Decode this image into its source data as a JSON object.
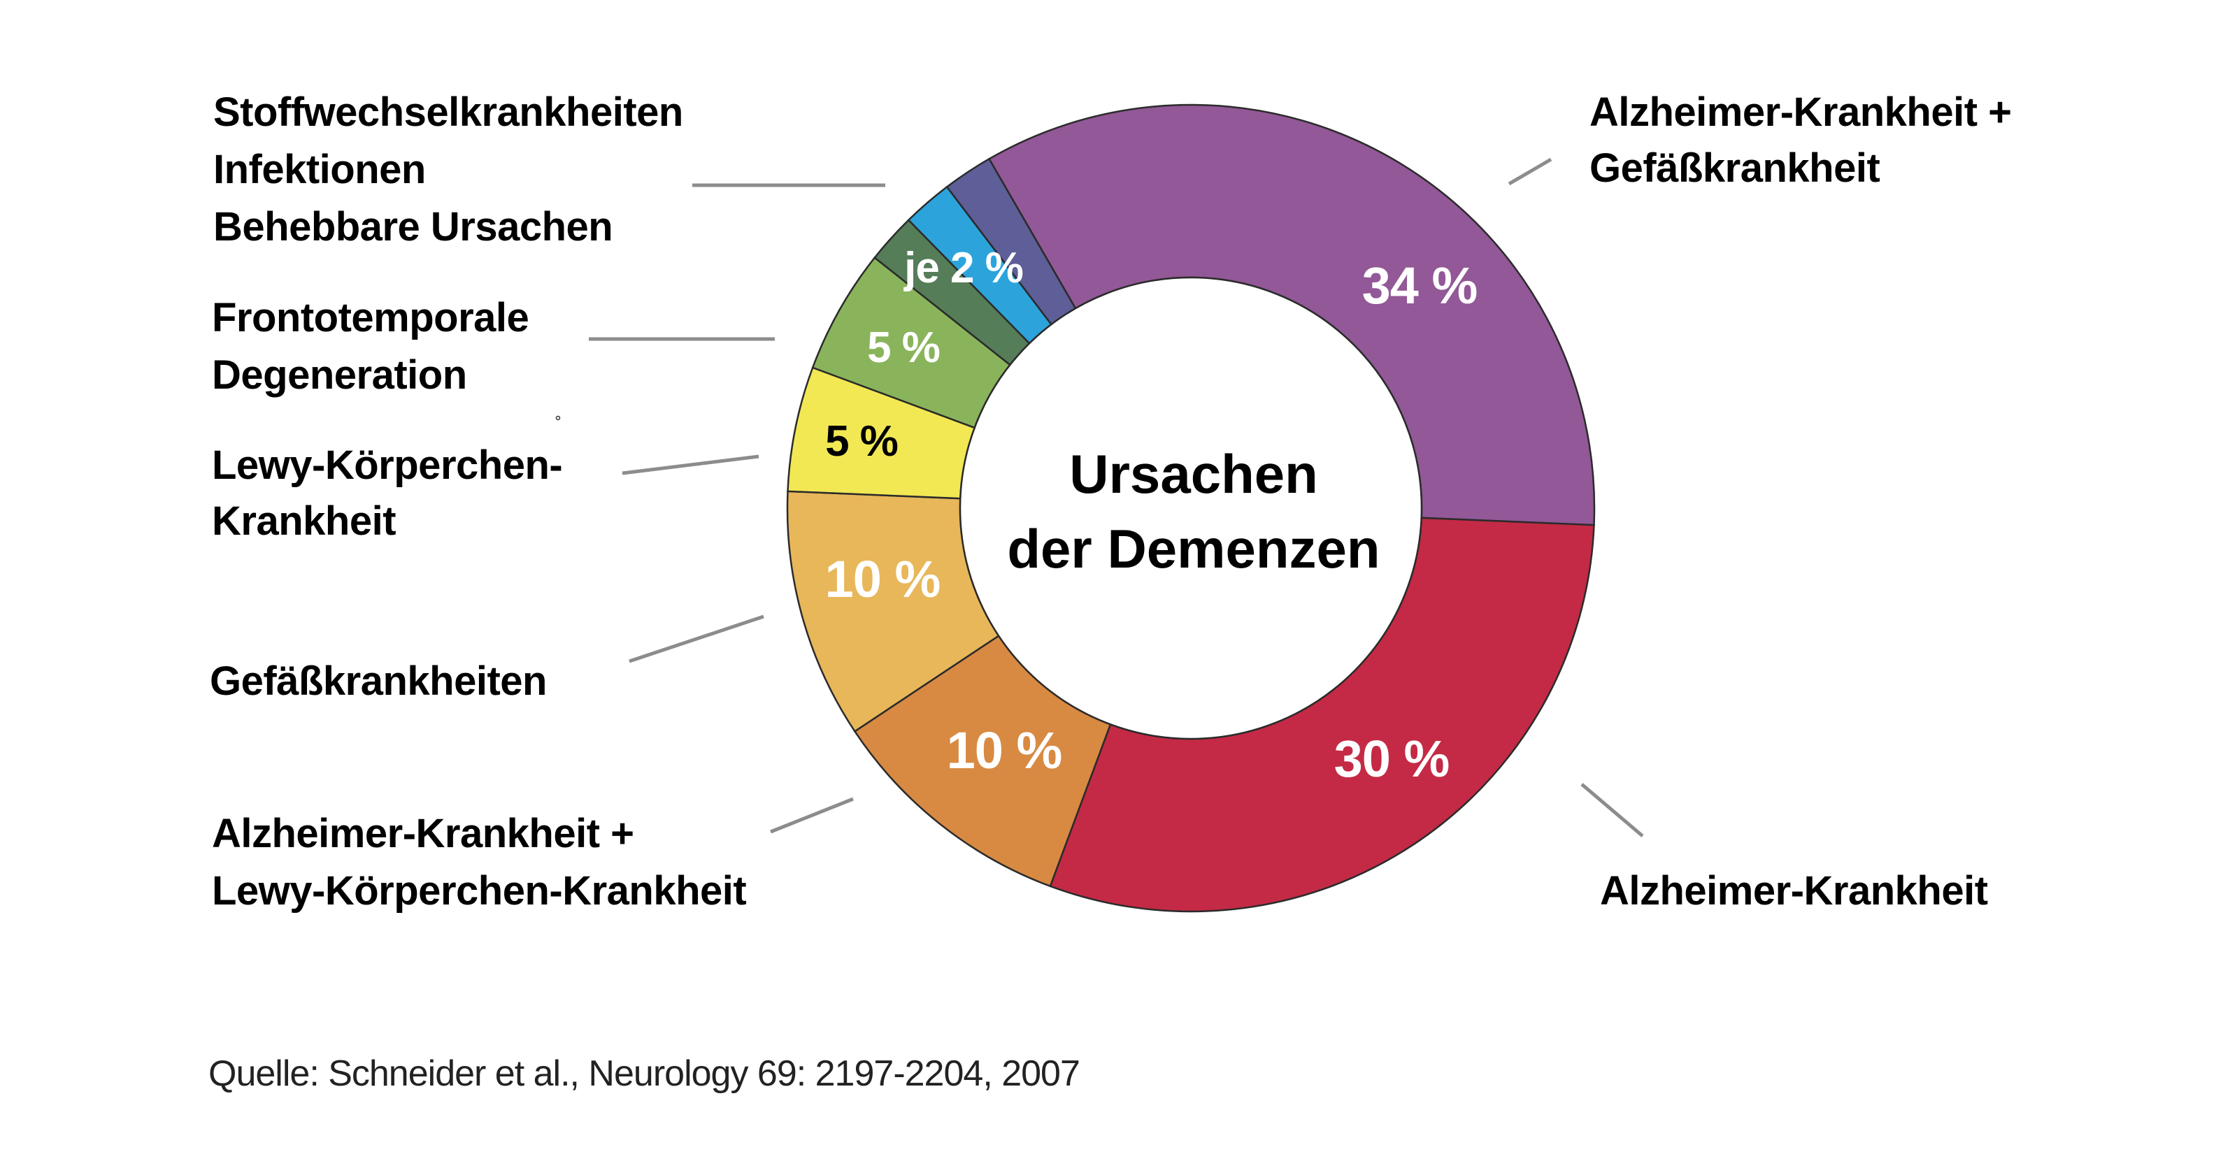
{
  "chart_data": {
    "type": "pie",
    "variant": "donut",
    "title": "Ursachen der Demenzen",
    "title_lines": [
      "Ursachen",
      "der Demenzen"
    ],
    "start_angle_deg": -30,
    "direction": "clockwise",
    "unit": "%",
    "segments": [
      {
        "name": "Alzheimer-Krankheit + Gefäßkrankheit",
        "label_lines": [
          "Alzheimer-Krankheit +",
          "Gefäßkrankheit"
        ],
        "value": 34,
        "value_label": "34 %",
        "color": "#925897",
        "value_label_color": "#ffffff"
      },
      {
        "name": "Alzheimer-Krankheit",
        "label_lines": [
          "Alzheimer-Krankheit"
        ],
        "value": 30,
        "value_label": "30 %",
        "color": "#C42A45",
        "value_label_color": "#ffffff"
      },
      {
        "name": "Alzheimer-Krankheit + Lewy-Körperchen-Krankheit",
        "label_lines": [
          "Alzheimer-Krankheit +",
          "Lewy-Körperchen-Krankheit"
        ],
        "value": 10,
        "value_label": "10 %",
        "color": "#D88A42",
        "value_label_color": "#ffffff"
      },
      {
        "name": "Gefäßkrankheiten",
        "label_lines": [
          "Gefäßkrankheiten"
        ],
        "value": 10,
        "value_label": "10 %",
        "color": "#E8B75A",
        "value_label_color": "#ffffff"
      },
      {
        "name": "Lewy-Körperchen-Krankheit",
        "label_lines": [
          "Lewy-Körperchen-",
          "Krankheit"
        ],
        "value": 5,
        "value_label": "5 %",
        "color": "#F2E854",
        "value_label_color": "#000000"
      },
      {
        "name": "Frontotemporale Degeneration",
        "label_lines": [
          "Frontotemporale",
          "Degeneration"
        ],
        "value": 5,
        "value_label": "5 %",
        "color": "#8AB45B",
        "value_label_color": "#ffffff"
      },
      {
        "name": "Stoffwechselkrankheiten",
        "value": 2,
        "value_label": "",
        "color": "#557D58"
      },
      {
        "name": "Infektionen",
        "value": 2,
        "value_label": "",
        "color": "#2CA4DB"
      },
      {
        "name": "Behebbare Ursachen",
        "value": 2,
        "value_label": "",
        "color": "#5E5E98"
      }
    ],
    "group_label": {
      "label_lines": [
        "Stoffwechselkrankheiten",
        "Infektionen",
        "Behebbare Ursachen"
      ],
      "value_label": "je 2 %",
      "value_label_color": "#ffffff"
    },
    "source": "Quelle: Schneider et al., Neurology 69: 2197-2204, 2007",
    "legend": "none (direct labels with leader lines)"
  }
}
